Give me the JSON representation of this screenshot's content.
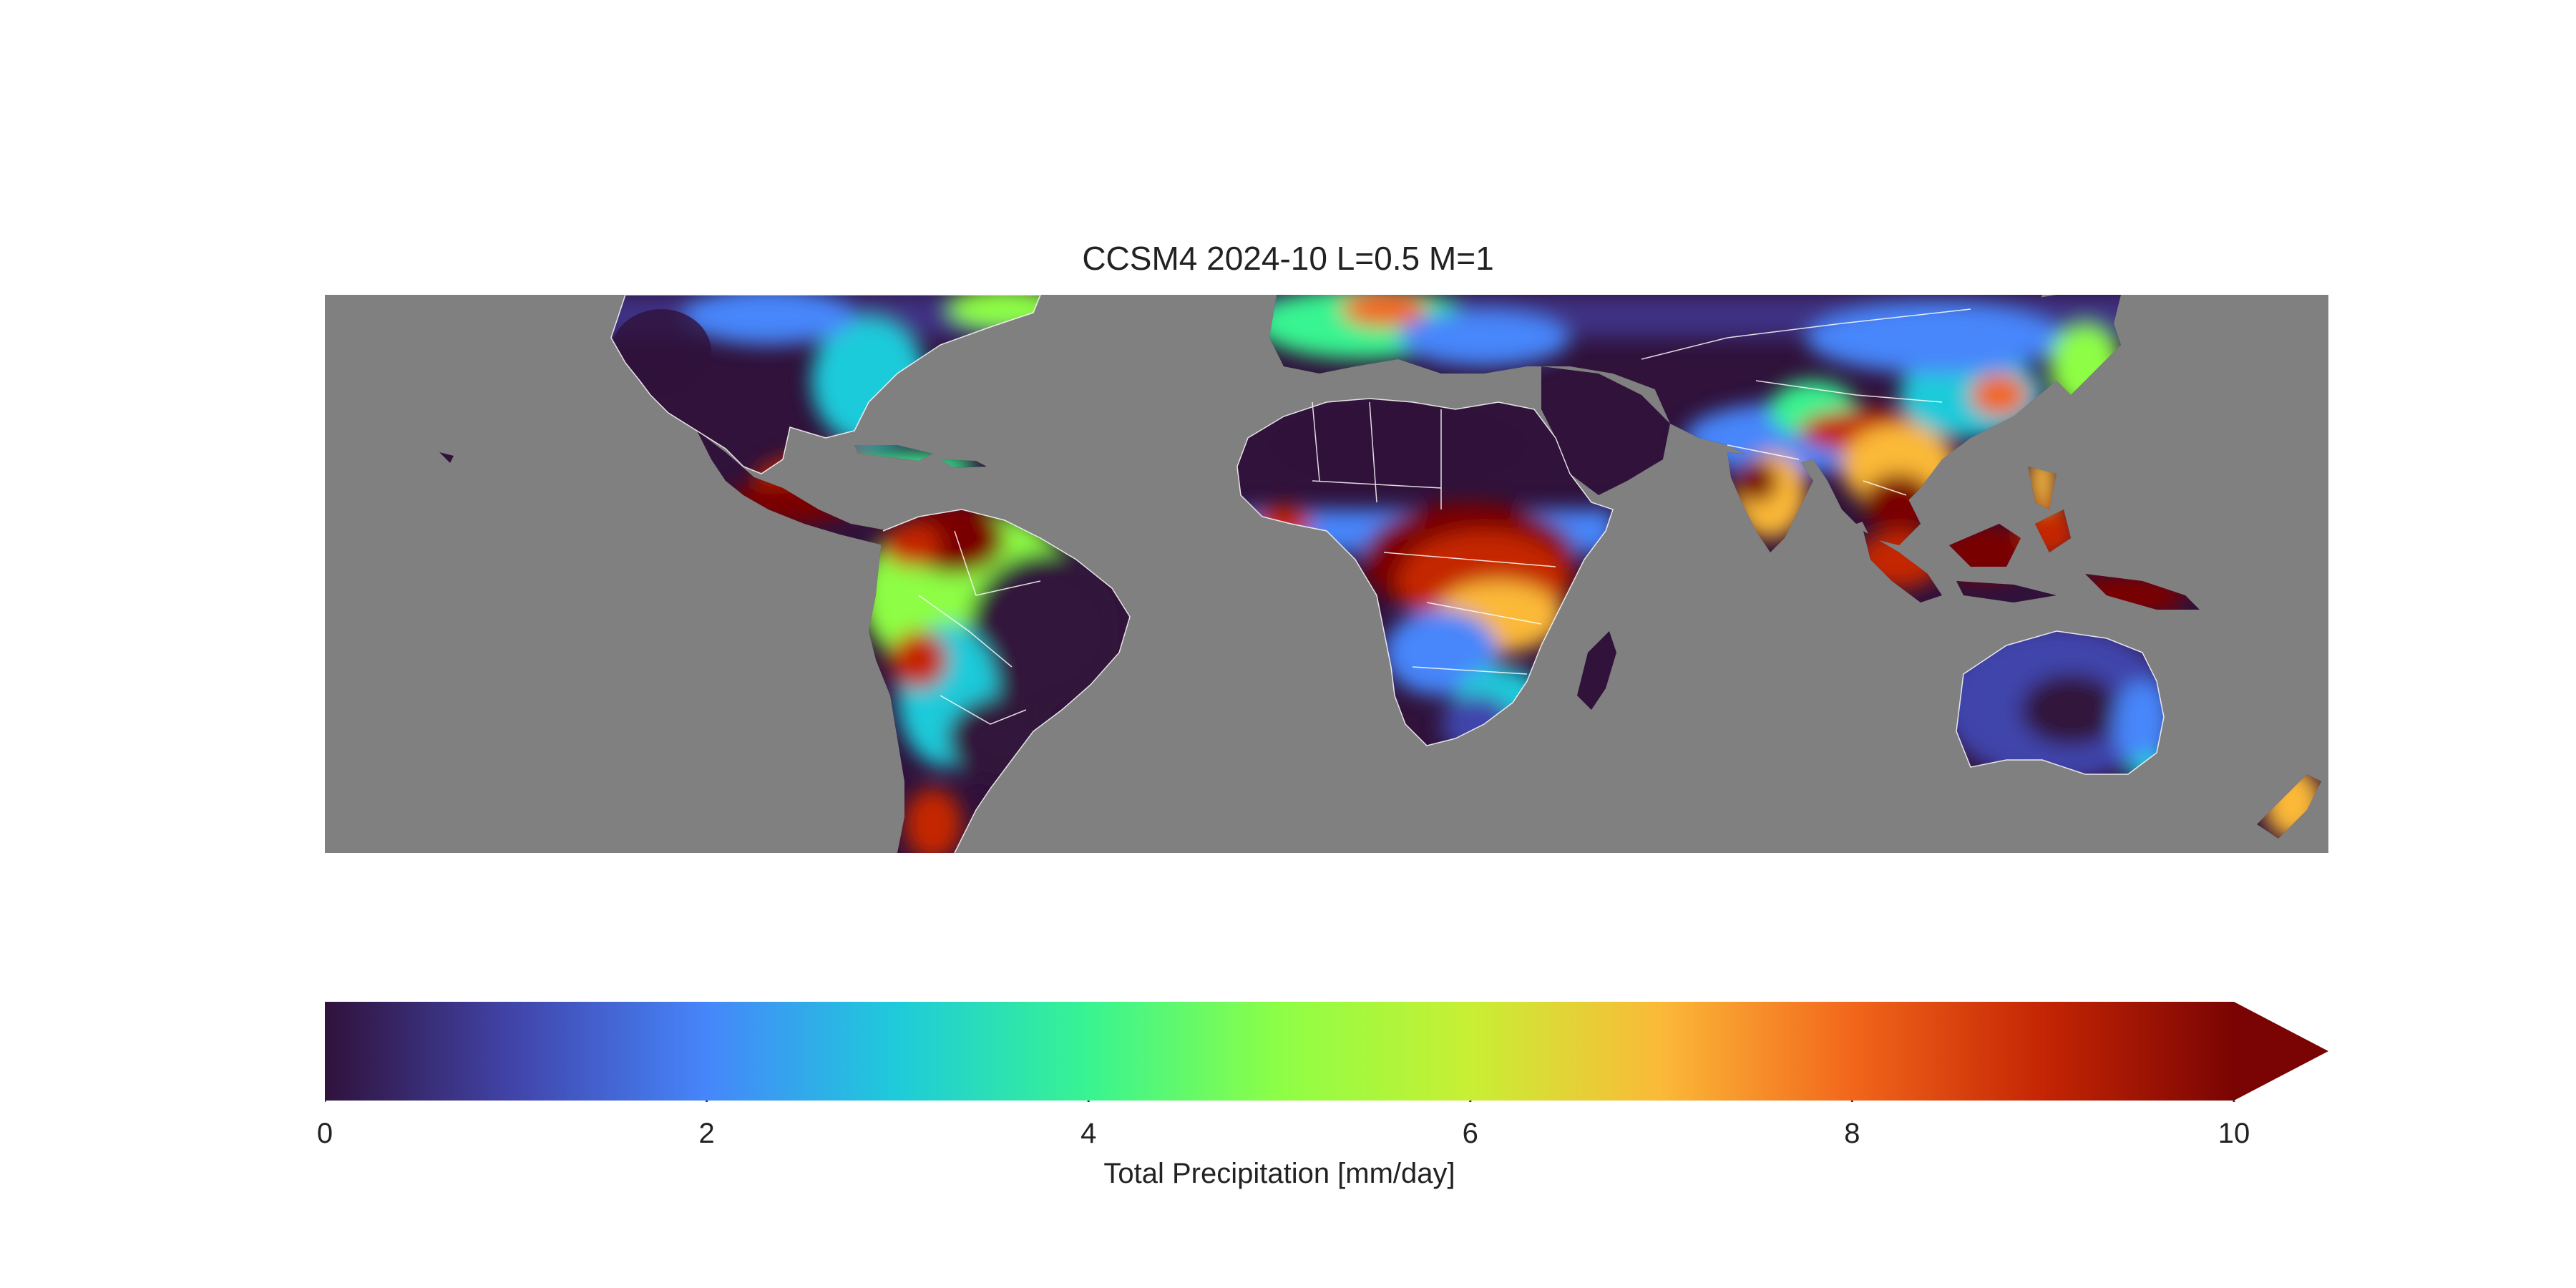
{
  "title": "CCSM4 2024-10 L=0.5 M=1",
  "colorbar": {
    "label": "Total Precipitation [mm/day]",
    "ticks": [
      "0",
      "2",
      "4",
      "6",
      "8",
      "10"
    ],
    "range": [
      0,
      10
    ],
    "extend": "max",
    "colormap": "turbo"
  },
  "map": {
    "ocean_color": "#808080",
    "border_color": "#ffffff",
    "extent": "tropics to mid-latitudes, 180W-180E"
  },
  "colors": {
    "low": "#30123b",
    "mid_low": "#4686fb",
    "mid": "#1ae4b6",
    "mid_high": "#a2fc3c",
    "high_mid": "#fba238",
    "high": "#e4460a",
    "max": "#7a0403"
  }
}
